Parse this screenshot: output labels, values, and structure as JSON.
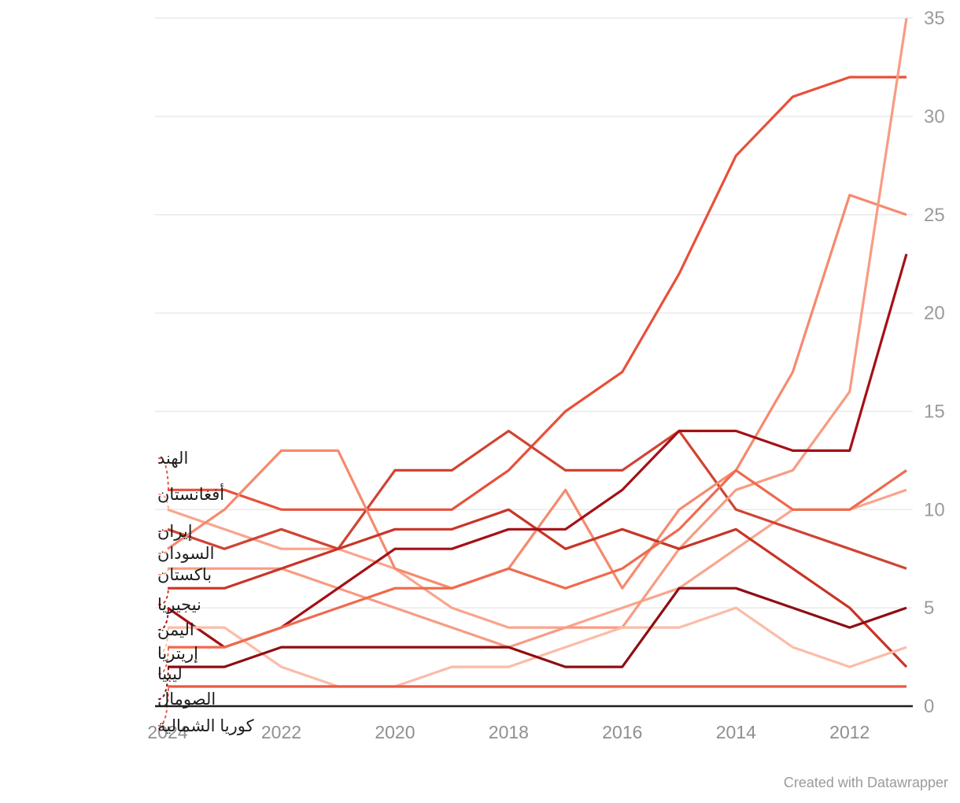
{
  "watermark": "Created with Datawrapper",
  "style_colors": {
    "grid": "#e9e9e9",
    "axis": "#1d1d1d",
    "tick_label": "#9b9b9b",
    "x_tick_label": "#8f8f8f",
    "country_label": "#1d1d1d"
  },
  "chart_data": {
    "type": "line",
    "x_axis_reversed": true,
    "years": [
      2024,
      2023,
      2022,
      2021,
      2020,
      2019,
      2018,
      2017,
      2016,
      2015,
      2014,
      2013,
      2012,
      2011
    ],
    "x_tick_labels": [
      "2024",
      "2022",
      "2020",
      "2018",
      "2016",
      "2014",
      "2012"
    ],
    "x_tick_years": [
      2024,
      2022,
      2020,
      2018,
      2016,
      2014,
      2012
    ],
    "y_ticks": [
      0,
      5,
      10,
      15,
      20,
      25,
      30,
      35
    ],
    "ylim": [
      0,
      35
    ],
    "grid": true,
    "legend_position": "left-labels",
    "series": [
      {
        "id": "india",
        "label": "الهند",
        "color": "#e8503a",
        "values": [
          11,
          11,
          10,
          10,
          10,
          10,
          12,
          15,
          17,
          22,
          28,
          31,
          32,
          32
        ]
      },
      {
        "id": "afghanistan",
        "label": "أفغانستان",
        "color": "#f9a58e",
        "values": [
          10,
          9,
          8,
          8,
          7,
          5,
          4,
          4,
          5,
          6,
          8,
          10,
          10,
          11
        ]
      },
      {
        "id": "iran",
        "label": "إيران",
        "color": "#cf4433",
        "values": [
          9,
          8,
          9,
          8,
          12,
          12,
          14,
          12,
          12,
          14,
          10,
          9,
          8,
          7
        ]
      },
      {
        "id": "sudan",
        "label": "السودان",
        "color": "#f58a6e",
        "values": [
          8,
          10,
          13,
          13,
          7,
          6,
          7,
          11,
          6,
          10,
          12,
          17,
          26,
          25
        ]
      },
      {
        "id": "pakistan",
        "label": "باكستان",
        "color": "#f79c83",
        "values": [
          7,
          7,
          7,
          6,
          5,
          4,
          3,
          4,
          4,
          8,
          11,
          12,
          16,
          35
        ]
      },
      {
        "id": "nigeria",
        "label": "نيجيريا",
        "color": "#c83527",
        "values": [
          6,
          6,
          7,
          8,
          9,
          9,
          10,
          8,
          9,
          8,
          9,
          7,
          5,
          2
        ]
      },
      {
        "id": "yemen",
        "label": "اليمن",
        "color": "#a31116",
        "values": [
          5,
          3,
          4,
          6,
          8,
          8,
          9,
          9,
          11,
          14,
          14,
          13,
          13,
          23
        ]
      },
      {
        "id": "eritrea",
        "label": "إريتريا",
        "color": "#fbbca7",
        "values": [
          4,
          4,
          2,
          1,
          1,
          2,
          2,
          3,
          4,
          4,
          5,
          3,
          2,
          3
        ]
      },
      {
        "id": "libya",
        "label": "ليبيا",
        "color": "#ef6a4e",
        "values": [
          3,
          3,
          4,
          5,
          6,
          6,
          7,
          6,
          7,
          9,
          12,
          10,
          10,
          12
        ]
      },
      {
        "id": "somalia",
        "label": "الصومال",
        "color": "#8e0e12",
        "values": [
          2,
          2,
          3,
          3,
          3,
          3,
          3,
          2,
          2,
          6,
          6,
          5,
          4,
          5
        ]
      },
      {
        "id": "north-korea",
        "label": "كوريا الشمالية",
        "color": "#ea5942",
        "values": [
          1,
          1,
          1,
          1,
          1,
          1,
          1,
          1,
          1,
          1,
          1,
          1,
          1,
          1
        ]
      }
    ]
  }
}
